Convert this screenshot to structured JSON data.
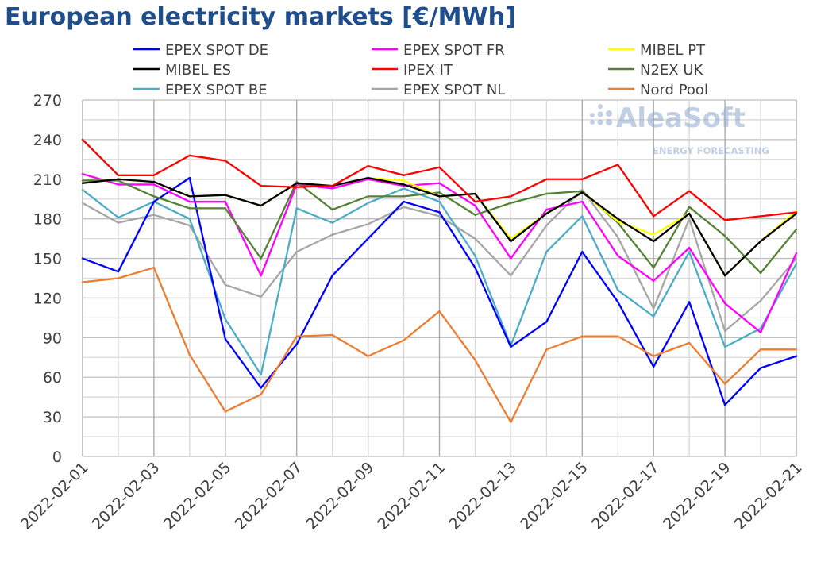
{
  "chart_data": {
    "type": "line",
    "title": "European electricity markets [€/MWh]",
    "xlabel": "",
    "ylabel": "",
    "ylim": [
      0,
      270
    ],
    "yticks": [
      0,
      30,
      60,
      90,
      120,
      150,
      180,
      210,
      240,
      270
    ],
    "grid": true,
    "legend_position": "top",
    "x": [
      "2022-02-01",
      "2022-02-02",
      "2022-02-03",
      "2022-02-04",
      "2022-02-05",
      "2022-02-06",
      "2022-02-07",
      "2022-02-08",
      "2022-02-09",
      "2022-02-10",
      "2022-02-11",
      "2022-02-12",
      "2022-02-13",
      "2022-02-14",
      "2022-02-15",
      "2022-02-16",
      "2022-02-17",
      "2022-02-18",
      "2022-02-19",
      "2022-02-20",
      "2022-02-21"
    ],
    "xtick_labels": [
      "2022-02-01",
      "2022-02-03",
      "2022-02-05",
      "2022-02-07",
      "2022-02-09",
      "2022-02-11",
      "2022-02-13",
      "2022-02-15",
      "2022-02-17",
      "2022-02-19",
      "2022-02-21"
    ],
    "series": [
      {
        "name": "EPEX SPOT DE",
        "color": "#0000ff",
        "values": [
          150,
          140,
          193,
          211,
          89,
          52,
          85,
          137,
          165,
          193,
          185,
          143,
          83,
          102,
          155,
          117,
          68,
          117,
          39,
          67,
          76
        ]
      },
      {
        "name": "EPEX SPOT FR",
        "color": "#ff00ff",
        "values": [
          214,
          206,
          206,
          193,
          193,
          137,
          206,
          203,
          210,
          205,
          207,
          190,
          150,
          187,
          193,
          152,
          133,
          158,
          116,
          94,
          154
        ]
      },
      {
        "name": "MIBEL PT",
        "color": "#ffff00",
        "values": [
          207,
          210,
          208,
          197,
          198,
          190,
          207,
          205,
          211,
          209,
          197,
          199,
          165,
          184,
          200,
          178,
          168,
          184,
          137,
          163,
          186
        ]
      },
      {
        "name": "MIBEL ES",
        "color": "#000000",
        "values": [
          207,
          210,
          208,
          197,
          198,
          190,
          207,
          205,
          211,
          206,
          197,
          199,
          163,
          184,
          200,
          180,
          163,
          184,
          137,
          163,
          184
        ]
      },
      {
        "name": "IPEX IT",
        "color": "#ff0000",
        "values": [
          240,
          213,
          213,
          228,
          224,
          205,
          204,
          205,
          220,
          213,
          219,
          193,
          197,
          210,
          210,
          221,
          182,
          201,
          179,
          182,
          185
        ]
      },
      {
        "name": "N2EX UK",
        "color": "#548235",
        "values": [
          209,
          209,
          197,
          188,
          188,
          150,
          208,
          187,
          197,
          197,
          200,
          183,
          192,
          199,
          201,
          177,
          143,
          189,
          167,
          139,
          172
        ]
      },
      {
        "name": "EPEX SPOT BE",
        "color": "#4bacc6",
        "values": [
          202,
          181,
          193,
          180,
          104,
          62,
          188,
          177,
          192,
          203,
          193,
          152,
          84,
          155,
          182,
          126,
          106,
          155,
          83,
          97,
          146
        ]
      },
      {
        "name": "EPEX SPOT NL",
        "color": "#a6a6a6",
        "values": [
          192,
          177,
          183,
          175,
          130,
          121,
          155,
          168,
          176,
          189,
          182,
          165,
          137,
          175,
          202,
          166,
          112,
          180,
          95,
          118,
          150
        ]
      },
      {
        "name": "Nord Pool",
        "color": "#ed7d31",
        "values": [
          132,
          135,
          143,
          77,
          34,
          47,
          91,
          92,
          76,
          88,
          110,
          73,
          26,
          81,
          91,
          91,
          76,
          86,
          55,
          81,
          81
        ]
      }
    ]
  },
  "watermark": {
    "brand": "AleaSoft",
    "tagline": "ENERGY FORECASTING"
  }
}
